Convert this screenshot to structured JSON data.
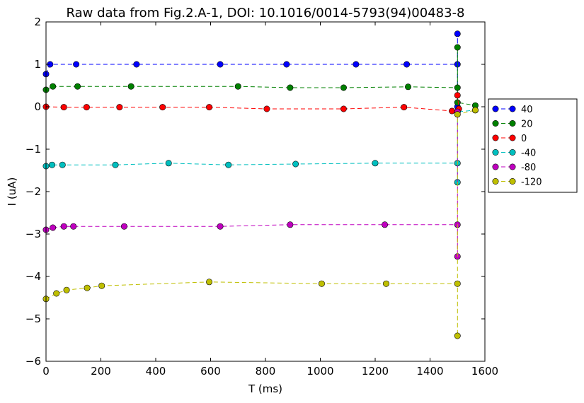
{
  "chart_data": {
    "type": "line",
    "title": "Raw data from Fig.2.A-1, DOI: 10.1016/0014-5793(94)00483-8",
    "xlabel": "T (ms)",
    "ylabel": "I (uA)",
    "xlim": [
      0,
      1600
    ],
    "ylim": [
      -6,
      2
    ],
    "xticks": [
      "0",
      "200",
      "400",
      "600",
      "800",
      "1000",
      "1200",
      "1400",
      "1600"
    ],
    "yticks": [
      "2",
      "1",
      "0",
      "−1",
      "−2",
      "−3",
      "−4",
      "−5",
      "−6"
    ],
    "xtick_values": [
      0,
      200,
      400,
      600,
      800,
      1000,
      1200,
      1400,
      1600
    ],
    "ytick_values": [
      2,
      1,
      0,
      -1,
      -2,
      -3,
      -4,
      -5,
      -6
    ],
    "grid": false,
    "legend_position": "right-outside",
    "series": [
      {
        "name": "40",
        "color": "#0000ff",
        "x": [
          0,
          15,
          110,
          330,
          635,
          877,
          1130,
          1315,
          1500,
          1500,
          1500
        ],
        "y": [
          0.77,
          1.0,
          1.0,
          1.0,
          1.0,
          1.0,
          1.0,
          1.0,
          1.0,
          1.72,
          0.0
        ]
      },
      {
        "name": "20",
        "color": "#008000",
        "x": [
          0,
          25,
          115,
          310,
          700,
          890,
          1085,
          1320,
          1500,
          1500,
          1500,
          1565
        ],
        "y": [
          0.4,
          0.48,
          0.48,
          0.48,
          0.48,
          0.45,
          0.45,
          0.47,
          0.45,
          1.4,
          0.1,
          0.03
        ]
      },
      {
        "name": "0",
        "color": "#ff0000",
        "x": [
          0,
          65,
          148,
          268,
          425,
          595,
          805,
          1085,
          1305,
          1480,
          1505,
          1500
        ],
        "y": [
          0.0,
          -0.01,
          -0.01,
          -0.01,
          -0.01,
          -0.01,
          -0.05,
          -0.05,
          -0.01,
          -0.1,
          -0.05,
          0.27
        ]
      },
      {
        "name": "-40",
        "color": "#00bfbf",
        "x": [
          0,
          22,
          60,
          253,
          447,
          665,
          910,
          1200,
          1500,
          1500,
          1500,
          1565
        ],
        "y": [
          -1.4,
          -1.37,
          -1.37,
          -1.37,
          -1.33,
          -1.37,
          -1.35,
          -1.33,
          -1.33,
          -1.78,
          -0.12,
          -0.08
        ]
      },
      {
        "name": "-80",
        "color": "#bf00bf",
        "x": [
          0,
          25,
          65,
          100,
          285,
          635,
          890,
          1235,
          1500,
          1500,
          1500
        ],
        "y": [
          -2.9,
          -2.85,
          -2.82,
          -2.82,
          -2.82,
          -2.82,
          -2.78,
          -2.78,
          -2.78,
          -3.53,
          -0.12
        ]
      },
      {
        "name": "-120",
        "color": "#bfbf00",
        "x": [
          0,
          38,
          75,
          150,
          203,
          595,
          1005,
          1240,
          1500,
          1500,
          1500,
          1565
        ],
        "y": [
          -4.53,
          -4.4,
          -4.32,
          -4.27,
          -4.22,
          -4.13,
          -4.17,
          -4.17,
          -4.17,
          -5.4,
          -0.18,
          -0.08
        ]
      }
    ]
  }
}
